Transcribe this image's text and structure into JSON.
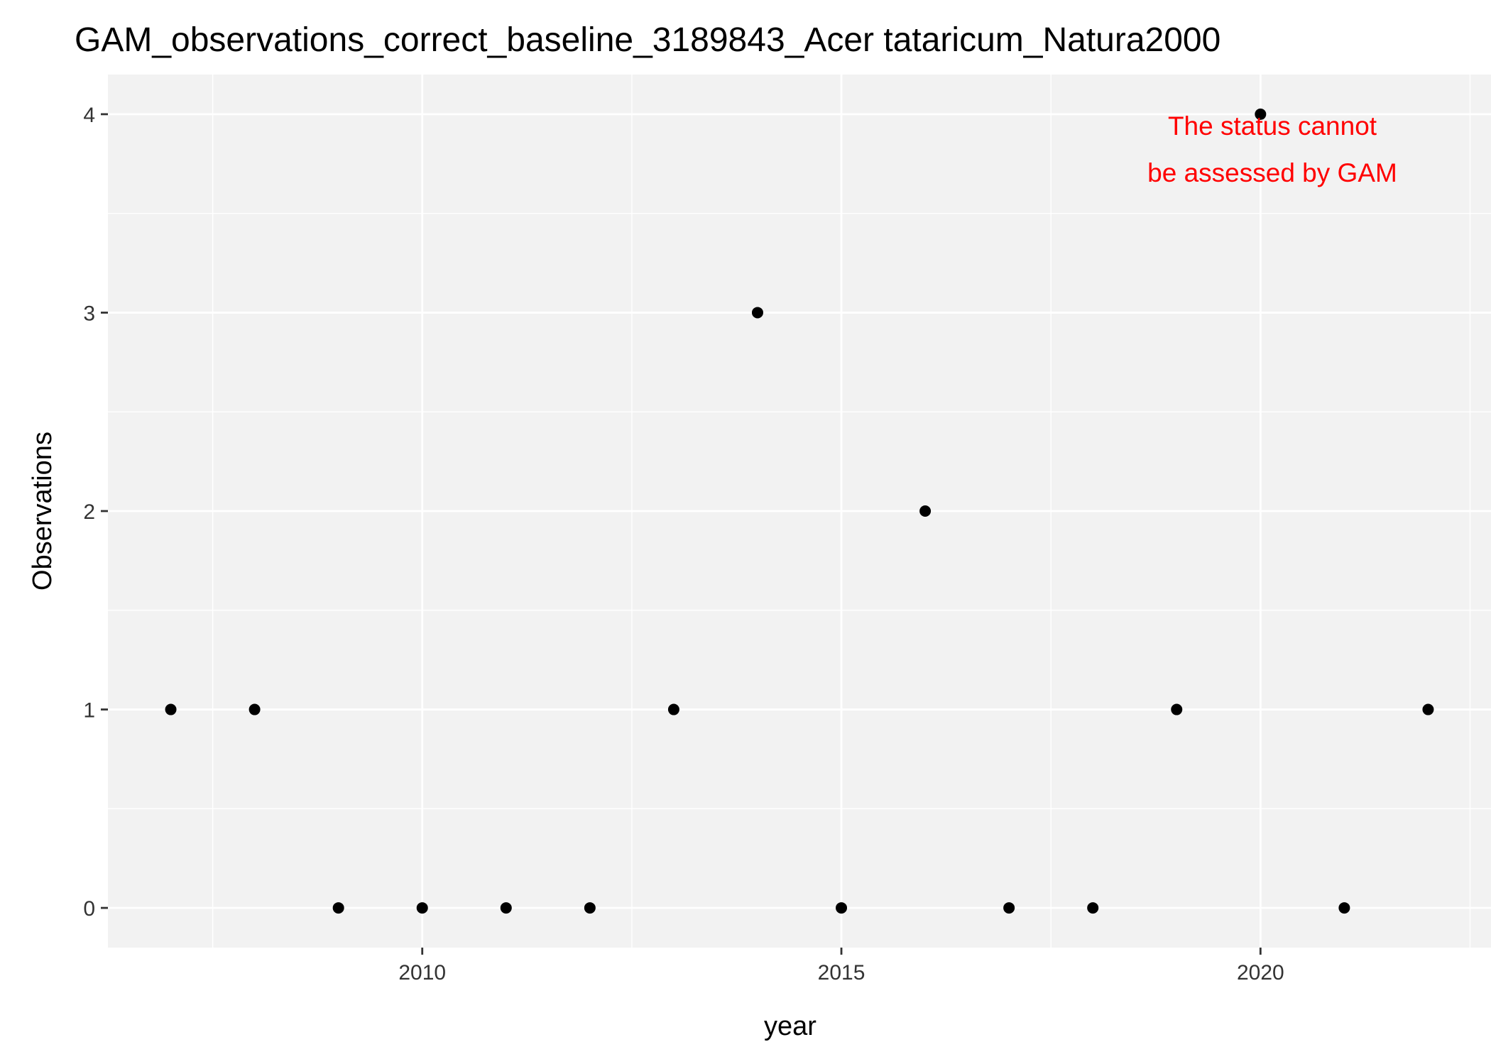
{
  "chart_data": {
    "type": "scatter",
    "title": "GAM_observations_correct_baseline_3189843_Acer tataricum_Natura2000",
    "xlabel": "year",
    "ylabel": "Observations",
    "x": [
      2007,
      2008,
      2009,
      2010,
      2011,
      2012,
      2013,
      2014,
      2015,
      2016,
      2017,
      2018,
      2019,
      2020,
      2021,
      2022
    ],
    "y": [
      1,
      1,
      0,
      0,
      0,
      0,
      1,
      3,
      0,
      2,
      0,
      0,
      1,
      4,
      0,
      1
    ],
    "xlim": [
      2006.25,
      2022.75
    ],
    "ylim": [
      -0.2,
      4.2
    ],
    "x_ticks": [
      2010,
      2015,
      2020
    ],
    "y_ticks": [
      0,
      1,
      2,
      3,
      4
    ],
    "x_tick_labels": [
      "2010",
      "2015",
      "2020"
    ],
    "y_tick_labels": [
      "0",
      "1",
      "2",
      "3",
      "4"
    ],
    "annotation": [
      "The status cannot",
      "be assessed by GAM"
    ],
    "grid": true,
    "legend": "none",
    "colors": {
      "panel_background": "#f2f2f2",
      "grid": "#ffffff",
      "point": "#000000",
      "annotation": "#ff0000"
    }
  }
}
